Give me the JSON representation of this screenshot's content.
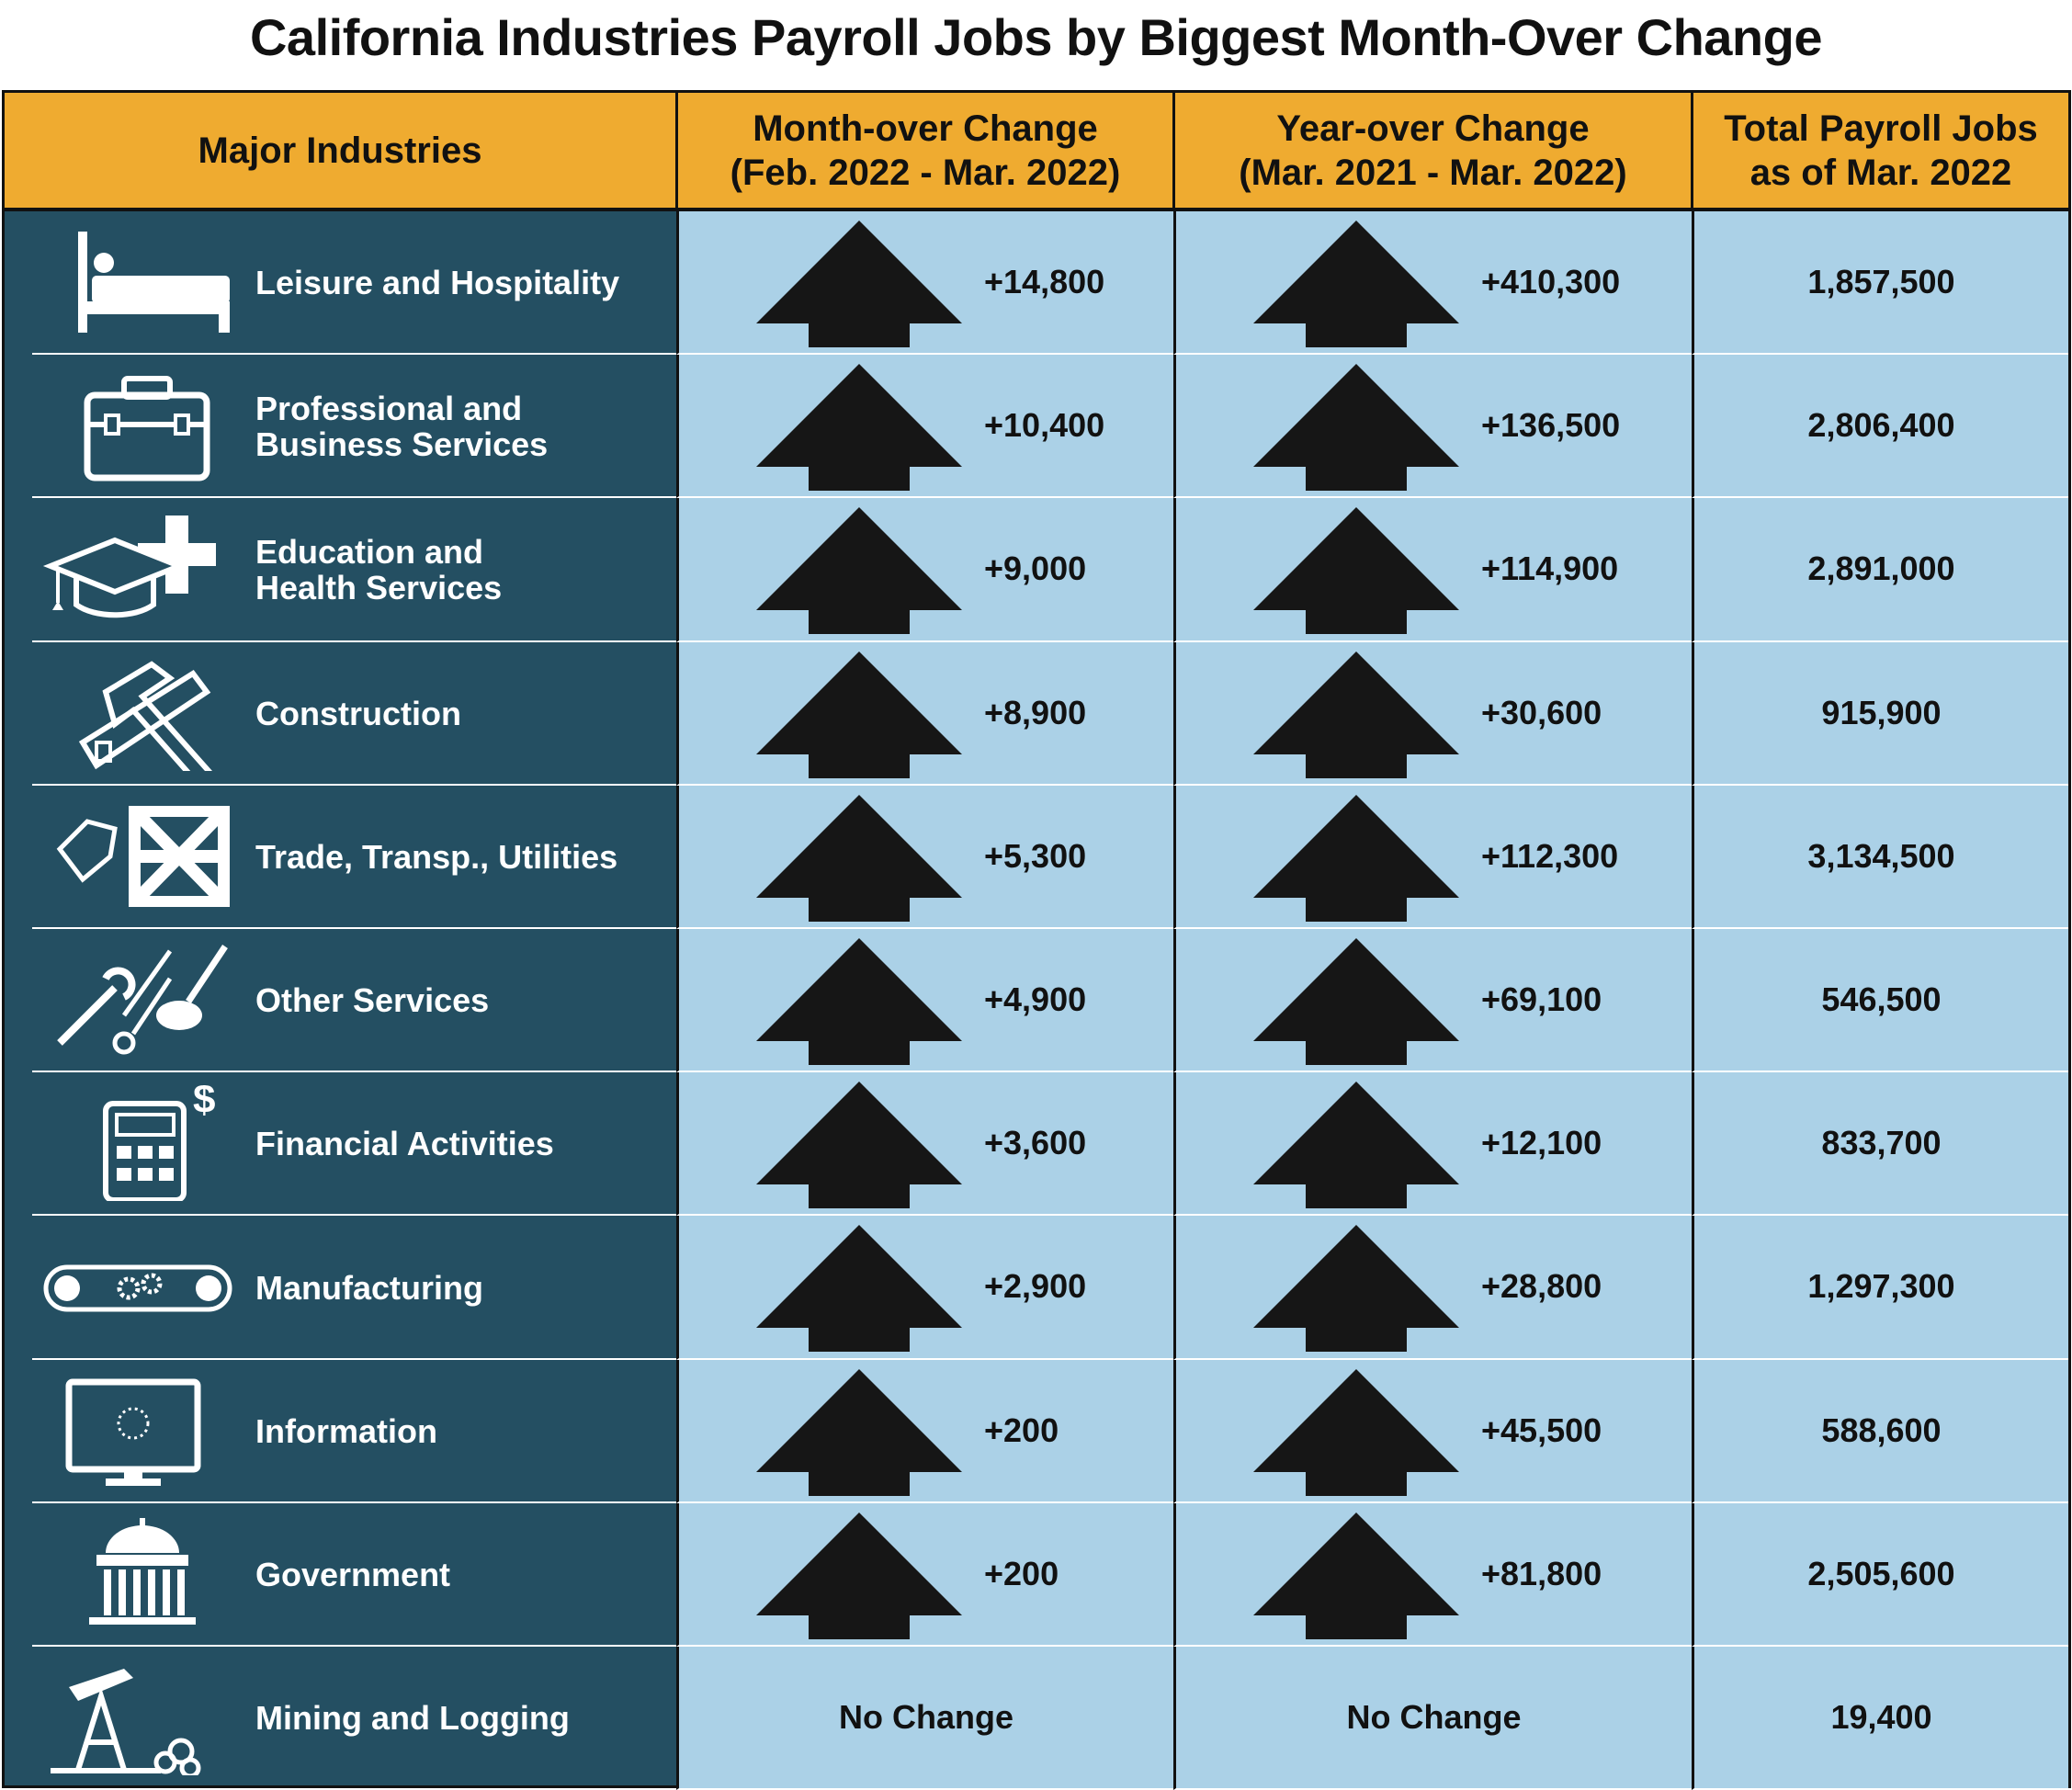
{
  "title": "California Industries Payroll Jobs by Biggest Month-Over Change",
  "headers": {
    "industry": "Major Industries",
    "mom_line1": "Month-over Change",
    "mom_line2": "(Feb. 2022 - Mar. 2022)",
    "yoy_line1": "Year-over Change",
    "yoy_line2": "(Mar. 2021 - Mar. 2022)",
    "total_line1": "Total Payroll Jobs",
    "total_line2": "as of Mar. 2022"
  },
  "colors": {
    "header": "#efab30",
    "industry_bg": "#244f62",
    "cell_bg": "#abd1e7",
    "arrow": "#161616"
  },
  "rows": [
    {
      "industry": "Leisure and Hospitality",
      "icon": "bed-icon",
      "mom": "+14,800",
      "mom_dir": "up",
      "yoy": "+410,300",
      "yoy_dir": "up",
      "total": "1,857,500"
    },
    {
      "industry": "Professional and\nBusiness Services",
      "icon": "briefcase-icon",
      "mom": "+10,400",
      "mom_dir": "up",
      "yoy": "+136,500",
      "yoy_dir": "up",
      "total": "2,806,400"
    },
    {
      "industry": "Education and\nHealth Services",
      "icon": "graduation-cap-cross-icon",
      "mom": "+9,000",
      "mom_dir": "up",
      "yoy": "+114,900",
      "yoy_dir": "up",
      "total": "2,891,000"
    },
    {
      "industry": "Construction",
      "icon": "hammer-saw-icon",
      "mom": "+8,900",
      "mom_dir": "up",
      "yoy": "+30,600",
      "yoy_dir": "up",
      "total": "915,900"
    },
    {
      "industry": "Trade, Transp., Utilities",
      "icon": "crate-tag-icon",
      "mom": "+5,300",
      "mom_dir": "up",
      "yoy": "+112,300",
      "yoy_dir": "up",
      "total": "3,134,500"
    },
    {
      "industry": "Other Services",
      "icon": "wrench-scissors-brush-icon",
      "mom": "+4,900",
      "mom_dir": "up",
      "yoy": "+69,100",
      "yoy_dir": "up",
      "total": "546,500"
    },
    {
      "industry": "Financial Activities",
      "icon": "calculator-dollar-icon",
      "mom": "+3,600",
      "mom_dir": "up",
      "yoy": "+12,100",
      "yoy_dir": "up",
      "total": "833,700"
    },
    {
      "industry": "Manufacturing",
      "icon": "conveyor-gears-icon",
      "mom": "+2,900",
      "mom_dir": "up",
      "yoy": "+28,800",
      "yoy_dir": "up",
      "total": "1,297,300"
    },
    {
      "industry": "Information",
      "icon": "monitor-icon",
      "mom": "+200",
      "mom_dir": "up",
      "yoy": "+45,500",
      "yoy_dir": "up",
      "total": "588,600"
    },
    {
      "industry": "Government",
      "icon": "capitol-building-icon",
      "mom": "+200",
      "mom_dir": "up",
      "yoy": "+81,800",
      "yoy_dir": "up",
      "total": "2,505,600"
    },
    {
      "industry": "Mining and Logging",
      "icon": "oil-pump-logs-icon",
      "mom": "No Change",
      "mom_dir": "none",
      "yoy": "No Change",
      "yoy_dir": "none",
      "total": "19,400"
    }
  ]
}
